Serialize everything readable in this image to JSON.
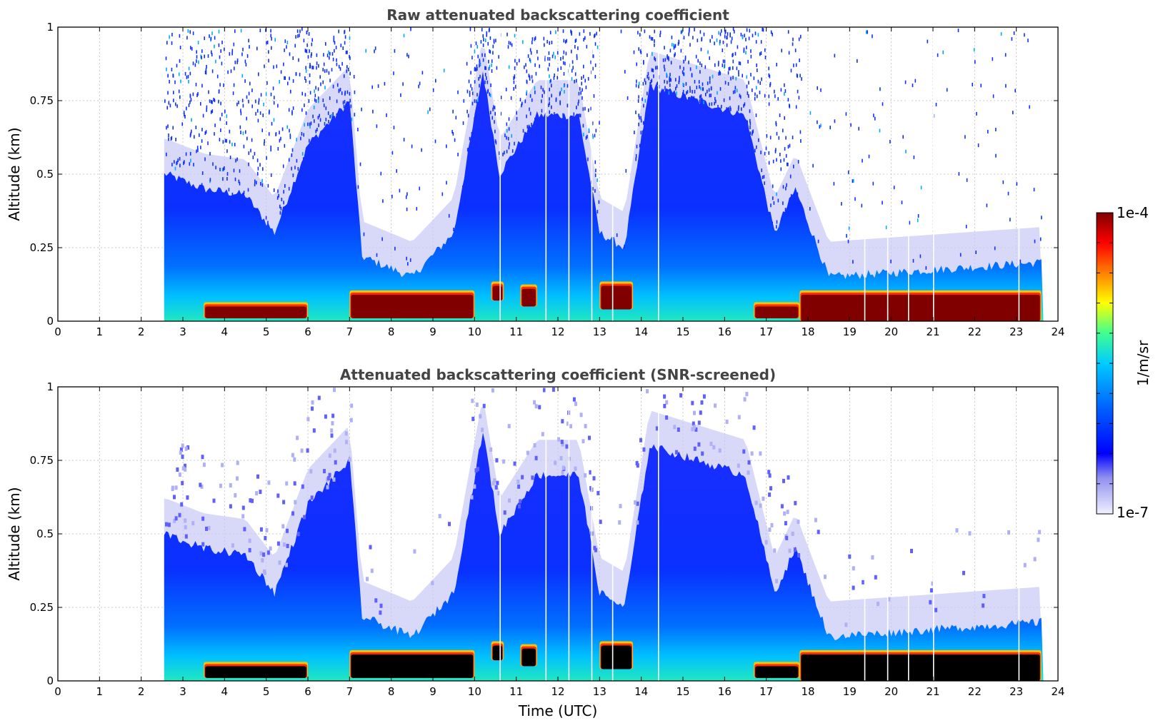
{
  "chart_data": [
    {
      "type": "heatmap",
      "title": "Raw attenuated backscattering coefficient",
      "ylabel": "Altitude (km)",
      "xlabel": "",
      "xlim": [
        0,
        24
      ],
      "ylim": [
        0,
        1
      ],
      "xticks": [
        "0",
        "1",
        "2",
        "3",
        "4",
        "5",
        "6",
        "7",
        "8",
        "9",
        "10",
        "11",
        "12",
        "13",
        "14",
        "15",
        "16",
        "17",
        "18",
        "19",
        "20",
        "21",
        "22",
        "23",
        "24"
      ],
      "yticks": [
        "0",
        "0.25",
        "0.5",
        "0.75",
        "1"
      ],
      "grid": true,
      "data_start_time": 2.55,
      "data_end_time": 23.65,
      "mixing_layer_top_km": [
        {
          "t": 2.6,
          "h": 0.5
        },
        {
          "t": 3.5,
          "h": 0.45
        },
        {
          "t": 4.5,
          "h": 0.43
        },
        {
          "t": 5.2,
          "h": 0.3
        },
        {
          "t": 6.0,
          "h": 0.6
        },
        {
          "t": 7.0,
          "h": 0.75
        },
        {
          "t": 7.3,
          "h": 0.22
        },
        {
          "t": 8.5,
          "h": 0.15
        },
        {
          "t": 9.5,
          "h": 0.3
        },
        {
          "t": 10.2,
          "h": 0.85
        },
        {
          "t": 10.6,
          "h": 0.5
        },
        {
          "t": 11.5,
          "h": 0.7
        },
        {
          "t": 12.5,
          "h": 0.7
        },
        {
          "t": 13.0,
          "h": 0.3
        },
        {
          "t": 13.6,
          "h": 0.25
        },
        {
          "t": 14.2,
          "h": 0.8
        },
        {
          "t": 16.5,
          "h": 0.7
        },
        {
          "t": 17.2,
          "h": 0.3
        },
        {
          "t": 17.7,
          "h": 0.45
        },
        {
          "t": 18.5,
          "h": 0.15
        },
        {
          "t": 23.6,
          "h": 0.2
        }
      ],
      "high_backscatter_layers": [
        {
          "t_start": 3.5,
          "t_end": 6.0,
          "h_bottom": 0.01,
          "h_top": 0.05
        },
        {
          "t_start": 7.0,
          "t_end": 10.0,
          "h_bottom": 0.01,
          "h_top": 0.09
        },
        {
          "t_start": 10.4,
          "t_end": 10.7,
          "h_bottom": 0.07,
          "h_top": 0.12
        },
        {
          "t_start": 11.1,
          "t_end": 11.5,
          "h_bottom": 0.05,
          "h_top": 0.11
        },
        {
          "t_start": 13.0,
          "t_end": 13.8,
          "h_bottom": 0.04,
          "h_top": 0.12
        },
        {
          "t_start": 16.7,
          "t_end": 17.8,
          "h_bottom": 0.01,
          "h_top": 0.05
        },
        {
          "t_start": 17.8,
          "t_end": 23.6,
          "h_bottom": 0.0,
          "h_top": 0.09
        }
      ]
    },
    {
      "type": "heatmap",
      "title": "Attenuated backscattering coefficient (SNR-screened)",
      "ylabel": "Altitude (km)",
      "xlabel": "Time (UTC)",
      "xlim": [
        0,
        24
      ],
      "ylim": [
        0,
        1
      ],
      "xticks": [
        "0",
        "1",
        "2",
        "3",
        "4",
        "5",
        "6",
        "7",
        "8",
        "9",
        "10",
        "11",
        "12",
        "13",
        "14",
        "15",
        "16",
        "17",
        "18",
        "19",
        "20",
        "21",
        "22",
        "23",
        "24"
      ],
      "yticks": [
        "0",
        "0.25",
        "0.5",
        "0.75",
        "1"
      ],
      "grid": true
    }
  ],
  "colorbar": {
    "label": "1/m/sr",
    "max_label": "1e-4",
    "min_label": "1e-7",
    "colors": [
      "#e8e8fa",
      "#0000ff",
      "#0050ff",
      "#00b4ff",
      "#00ffd0",
      "#80ff80",
      "#ffff00",
      "#ff8000",
      "#ff0000",
      "#800000"
    ]
  },
  "colors": {
    "title": "#444444",
    "grid": "#bbbbbb",
    "saturated_screened": "#000000"
  }
}
